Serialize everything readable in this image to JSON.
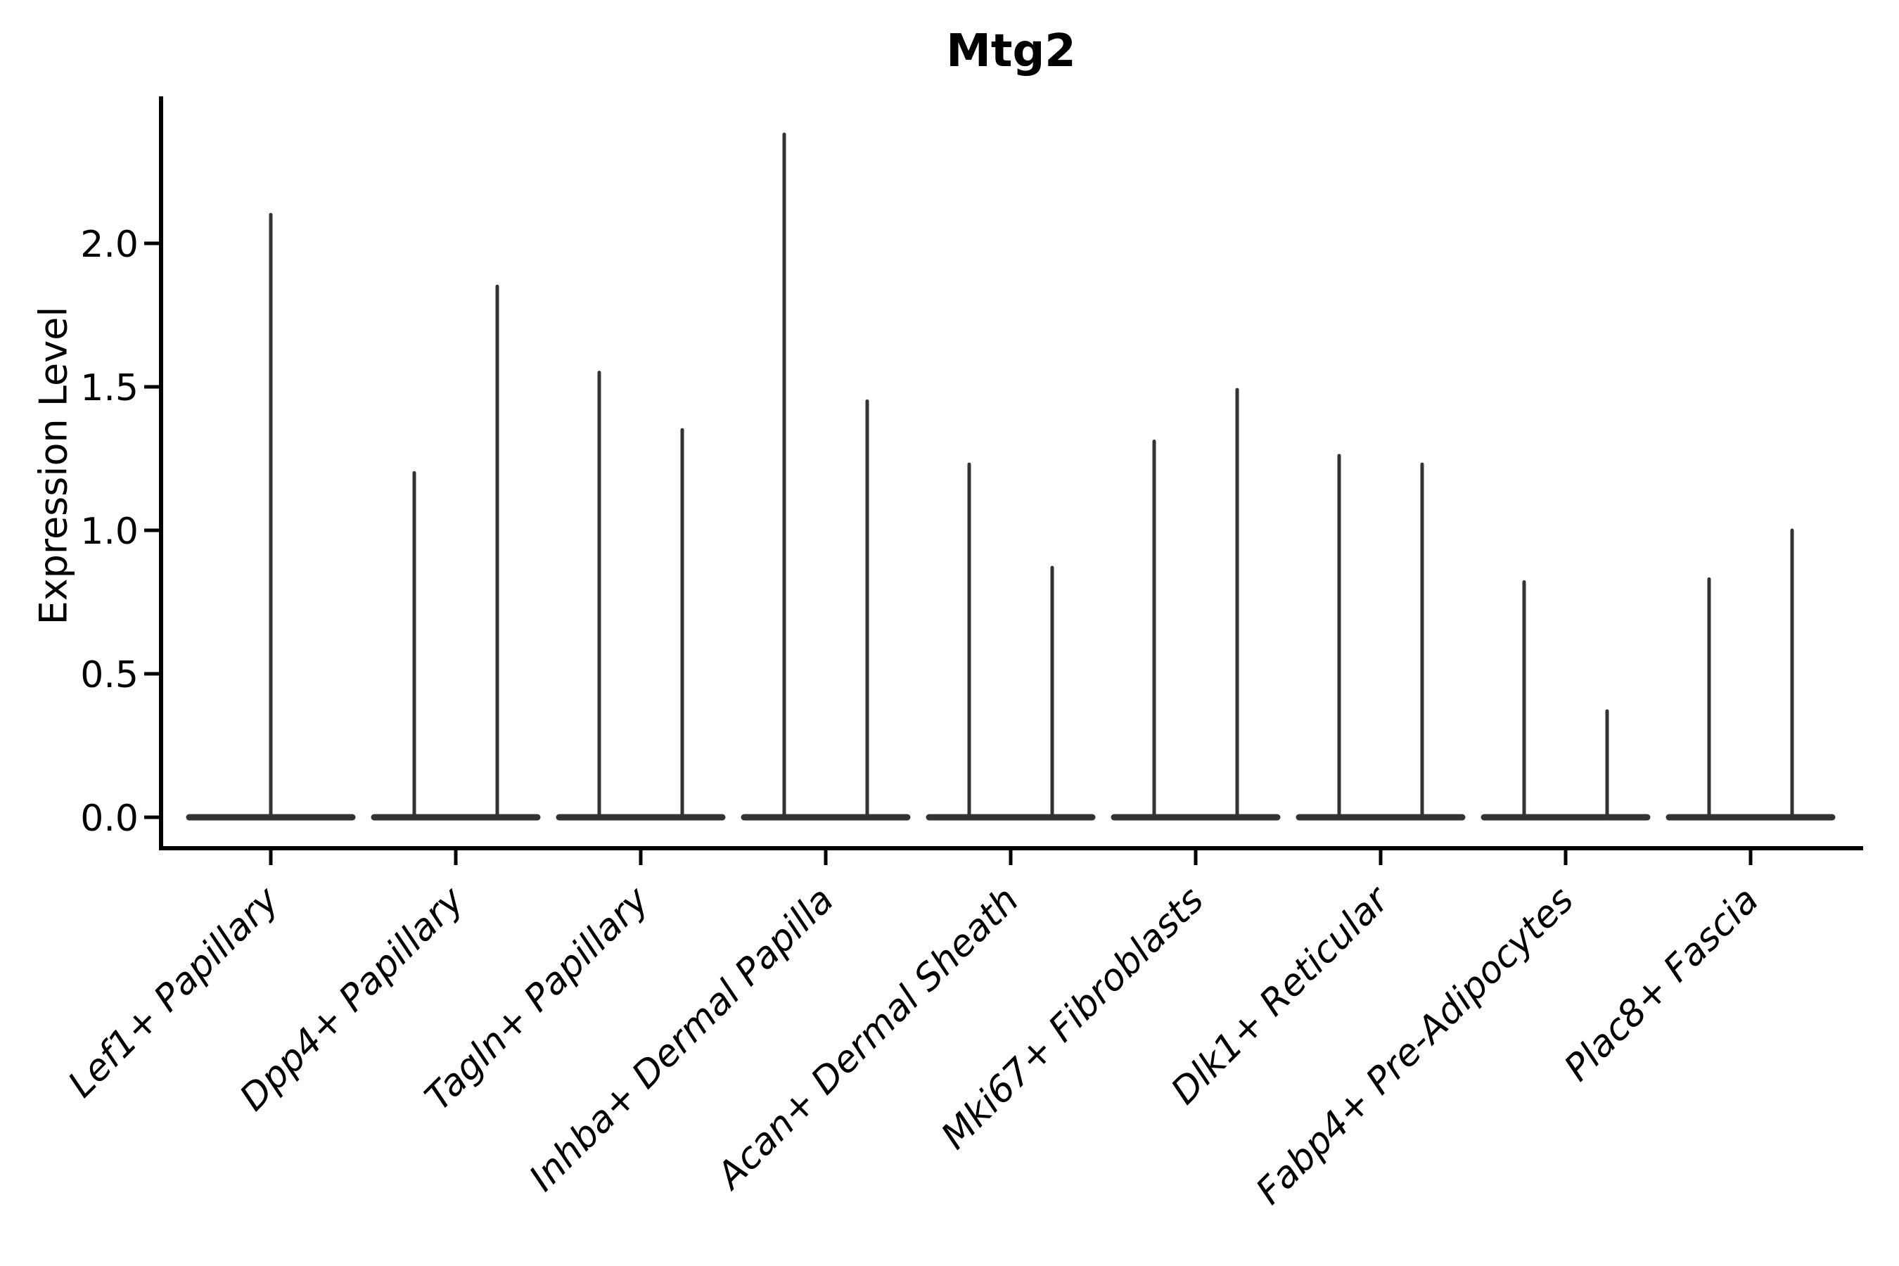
{
  "chart_data": {
    "type": "violin",
    "title": "Mtg2",
    "xlabel": "",
    "ylabel": "Expression Level",
    "categories": [
      "Lef1+ Papillary",
      "Dpp4+ Papillary",
      "Tagln+ Papillary",
      "Inhba+ Dermal Papilla",
      "Acan+ Dermal Sheath",
      "Mki67+ Fibroblasts",
      "Dlk1+ Reticular",
      "Fabp4+ Pre-Adipocytes",
      "Plac8+ Fascia"
    ],
    "violins": [
      {
        "category": "Lef1+ Papillary",
        "maxima": [
          2.1
        ]
      },
      {
        "category": "Dpp4+ Papillary",
        "maxima": [
          1.2,
          1.85
        ]
      },
      {
        "category": "Tagln+ Papillary",
        "maxima": [
          1.55,
          1.35
        ]
      },
      {
        "category": "Inhba+ Dermal Papilla",
        "maxima": [
          2.38,
          1.45
        ]
      },
      {
        "category": "Acan+ Dermal Sheath",
        "maxima": [
          1.23,
          0.87
        ]
      },
      {
        "category": "Mki67+ Fibroblasts",
        "maxima": [
          1.31,
          1.49
        ]
      },
      {
        "category": "Dlk1+ Reticular",
        "maxima": [
          1.26,
          1.23
        ]
      },
      {
        "category": "Fabp4+ Pre-Adipocytes",
        "maxima": [
          0.82,
          0.37
        ]
      },
      {
        "category": "Plac8+ Fascia",
        "maxima": [
          0.83,
          1.0
        ]
      }
    ],
    "violin_shape_note": "most cells at 0: wide flat base at y=0 with thin vertical spike to max",
    "yticks": [
      0.0,
      0.5,
      1.0,
      1.5,
      2.0
    ],
    "ytick_labels": [
      "0.0",
      "0.5",
      "1.0",
      "1.5",
      "2.0"
    ],
    "ylim": [
      -0.11,
      2.5
    ],
    "grid": false,
    "legend": "none",
    "x_tick_label_style": "italic, rotated 45 degrees, right-anchored",
    "colors": {
      "violin": "#333333",
      "axis": "#000000",
      "text": "#000000",
      "background": "#ffffff"
    }
  }
}
